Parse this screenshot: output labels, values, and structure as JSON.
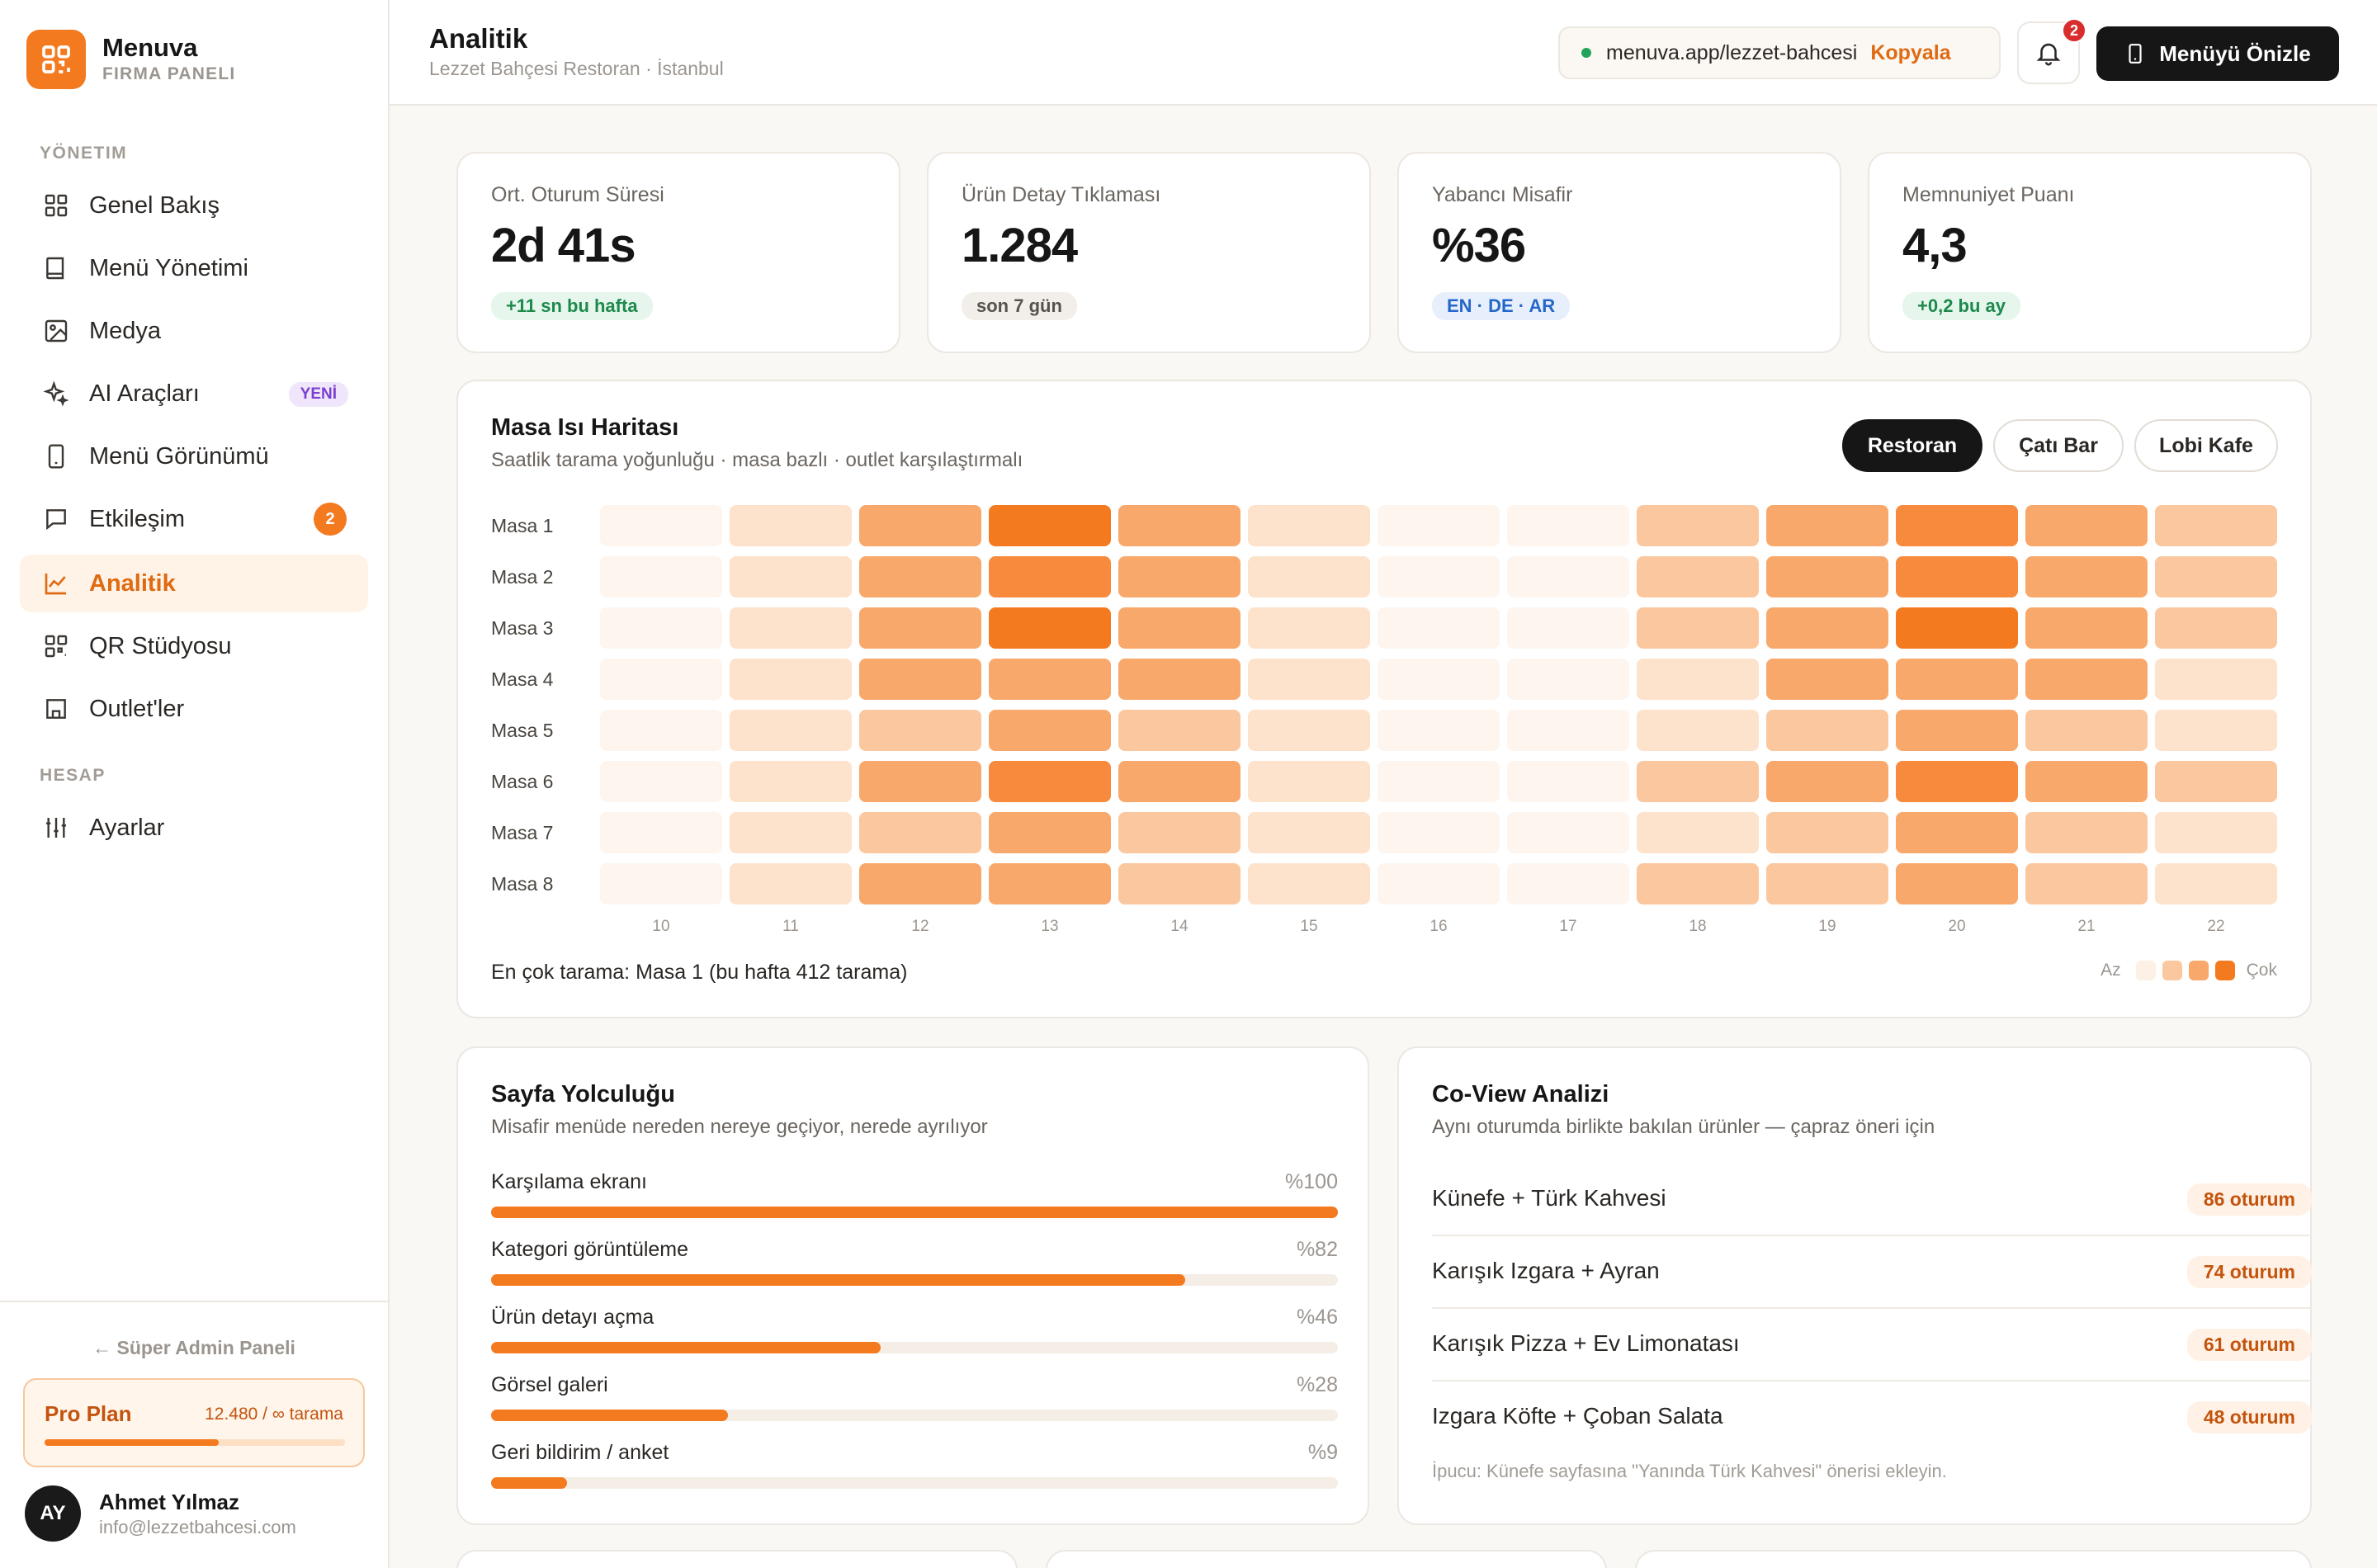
{
  "brand": {
    "name": "Menuva",
    "subtitle": "FIRMA PANELI"
  },
  "sidebar": {
    "section_management": "YÖNETIM",
    "section_account": "HESAP",
    "items": [
      {
        "label": "Genel Bakış",
        "icon": "grid-icon"
      },
      {
        "label": "Menü Yönetimi",
        "icon": "book-icon"
      },
      {
        "label": "Medya",
        "icon": "image-icon"
      },
      {
        "label": "AI Araçları",
        "icon": "sparkle-icon",
        "badge": "YENİ"
      },
      {
        "label": "Menü Görünümü",
        "icon": "phone-icon"
      },
      {
        "label": "Etkileşim",
        "icon": "chat-icon",
        "count": "2"
      },
      {
        "label": "Analitik",
        "icon": "chart-icon",
        "active": true
      },
      {
        "label": "QR Stüdyosu",
        "icon": "qr-icon"
      },
      {
        "label": "Outlet'ler",
        "icon": "store-icon"
      }
    ],
    "account_items": [
      {
        "label": "Ayarlar",
        "icon": "sliders-icon"
      }
    ],
    "super_admin_link": "← Süper Admin Paneli",
    "plan": {
      "name": "Pro Plan",
      "usage": "12.480 / ∞ tarama",
      "progress": 0.58
    },
    "user": {
      "initials": "AY",
      "name": "Ahmet Yılmaz",
      "email": "info@lezzetbahcesi.com"
    }
  },
  "header": {
    "title": "Analitik",
    "subtitle": "Lezzet Bahçesi Restoran · İstanbul",
    "url": "menuva.app/lezzet-bahcesi",
    "copy_label": "Kopyala",
    "notification_count": "2",
    "preview_label": "Menüyü Önizle"
  },
  "stats": [
    {
      "label": "Ort. Oturum Süresi",
      "value": "2d 41s",
      "chip": "+11 sn bu hafta",
      "chip_style": "green"
    },
    {
      "label": "Ürün Detay Tıklaması",
      "value": "1.284",
      "chip": "son 7 gün",
      "chip_style": "gray"
    },
    {
      "label": "Yabancı Misafir",
      "value": "%36",
      "chip": "EN · DE · AR",
      "chip_style": "blue"
    },
    {
      "label": "Memnuniyet Puanı",
      "value": "4,3",
      "chip": "+0,2 bu ay",
      "chip_style": "green"
    }
  ],
  "heatmap": {
    "title": "Masa Isı Haritası",
    "subtitle": "Saatlik tarama yoğunluğu · masa bazlı · outlet karşılaştırmalı",
    "tabs": [
      {
        "label": "Restoran",
        "active": true
      },
      {
        "label": "Çatı Bar"
      },
      {
        "label": "Lobi Kafe"
      }
    ],
    "footer": "En çok tarama: Masa 1 (bu hafta 412 tarama)",
    "legend_low": "Az",
    "legend_high": "Çok",
    "colors": [
      "#fdf5ee",
      "#fde2cc",
      "#fbc79e",
      "#f9a86b",
      "#f78a3d",
      "#f47a20"
    ]
  },
  "chart_data": {
    "type": "heatmap",
    "title": "Masa Isı Haritası",
    "rows": [
      "Masa 1",
      "Masa 2",
      "Masa 3",
      "Masa 4",
      "Masa 5",
      "Masa 6",
      "Masa 7",
      "Masa 8"
    ],
    "columns": [
      "10",
      "11",
      "12",
      "13",
      "14",
      "15",
      "16",
      "17",
      "18",
      "19",
      "20",
      "21",
      "22"
    ],
    "intensity_scale": [
      0,
      5
    ],
    "values": [
      [
        0,
        1,
        3,
        5,
        3,
        1,
        0,
        0,
        2,
        3,
        4,
        3,
        2
      ],
      [
        0,
        1,
        3,
        4,
        3,
        1,
        0,
        0,
        2,
        3,
        4,
        3,
        2
      ],
      [
        0,
        1,
        3,
        5,
        3,
        1,
        0,
        0,
        2,
        3,
        5,
        3,
        2
      ],
      [
        0,
        1,
        3,
        3,
        3,
        1,
        0,
        0,
        1,
        3,
        3,
        3,
        1
      ],
      [
        0,
        1,
        2,
        3,
        2,
        1,
        0,
        0,
        1,
        2,
        3,
        2,
        1
      ],
      [
        0,
        1,
        3,
        4,
        3,
        1,
        0,
        0,
        2,
        3,
        4,
        3,
        2
      ],
      [
        0,
        1,
        2,
        3,
        2,
        1,
        0,
        0,
        1,
        2,
        3,
        2,
        1
      ],
      [
        0,
        1,
        3,
        3,
        2,
        1,
        0,
        0,
        2,
        2,
        3,
        2,
        1
      ]
    ]
  },
  "journey": {
    "title": "Sayfa Yolculuğu",
    "subtitle": "Misafir menüde nereden nereye geçiyor, nerede ayrılıyor",
    "steps": [
      {
        "label": "Karşılama ekranı",
        "pct": "%100",
        "value": 100
      },
      {
        "label": "Kategori görüntüleme",
        "pct": "%82",
        "value": 82
      },
      {
        "label": "Ürün detayı açma",
        "pct": "%46",
        "value": 46
      },
      {
        "label": "Görsel galeri",
        "pct": "%28",
        "value": 28
      },
      {
        "label": "Geri bildirim / anket",
        "pct": "%9",
        "value": 9
      }
    ]
  },
  "coview": {
    "title": "Co-View Analizi",
    "subtitle": "Aynı oturumda birlikte bakılan ürünler — çapraz öneri için",
    "pairs": [
      {
        "label": "Künefe + Türk Kahvesi",
        "count": "86 oturum"
      },
      {
        "label": "Karışık Izgara + Ayran",
        "count": "74 oturum"
      },
      {
        "label": "Karışık Pizza + Ev Limonatası",
        "count": "61 oturum"
      },
      {
        "label": "Izgara Köfte + Çoban Salata",
        "count": "48 oturum"
      }
    ],
    "tip": "İpucu: Künefe sayfasına \"Yanında Türk Kahvesi\" önerisi ekleyin."
  }
}
